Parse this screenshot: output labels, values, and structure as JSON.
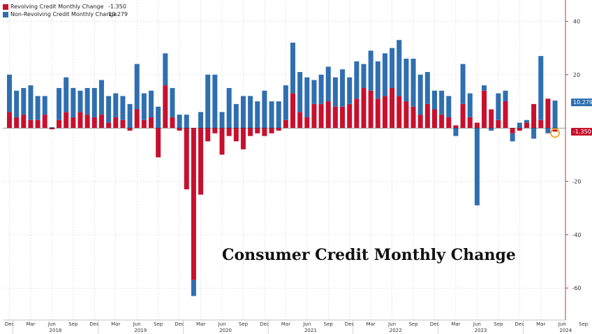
{
  "colors": {
    "revolving": "#c8102e",
    "non_revolving": "#2f6fb0",
    "grid": "#d4d4d4",
    "axis_red": "#c23b3b",
    "marker": "#f0a830"
  },
  "legend": [
    {
      "name": "Revolving Credit Monthly Change",
      "value": "-1.350",
      "color": "#c8102e"
    },
    {
      "name": "Non-Revolving Credit Monthly Change",
      "value": "10.279",
      "color": "#2f6fb0"
    }
  ],
  "callouts": {
    "non_revolving": "10.279",
    "revolving": "-1.350"
  },
  "chart_data": {
    "type": "bar",
    "stacked": true,
    "title": "Consumer Credit Monthly Change",
    "ylim": [
      -72,
      48
    ],
    "yticks": [
      -60,
      -40,
      -20,
      20,
      40
    ],
    "grid": true,
    "legend_position": "top-left",
    "month_ticks": [
      "Dec",
      "Mar",
      "Jun",
      "Sep",
      "Dec",
      "Mar",
      "Jun",
      "Sep",
      "Dec",
      "Mar",
      "Jun",
      "Sep",
      "Dec",
      "Mar",
      "Jun",
      "Sep",
      "Dec",
      "Mar",
      "Jun",
      "Sep",
      "Dec",
      "Mar",
      "Jun",
      "Sep",
      "Dec",
      "Mar",
      "Jun",
      "Sep"
    ],
    "year_labels": [
      "2018",
      "2019",
      "2020",
      "2021",
      "2022",
      "2023",
      "2024"
    ],
    "series": [
      {
        "name": "Revolving Credit Monthly Change",
        "values": [
          6,
          4,
          5,
          3,
          3,
          5,
          -0.5,
          3,
          6,
          4,
          6,
          5,
          4,
          5,
          2,
          4,
          3,
          -1,
          7,
          3,
          4,
          -11,
          16,
          4,
          -1,
          -23,
          -57,
          -25,
          -5,
          -2,
          -10,
          -3,
          -5,
          -8,
          -3,
          -2,
          -3,
          -2,
          -1,
          3,
          13,
          6,
          4,
          9,
          9,
          10,
          8,
          8,
          9,
          11,
          15,
          14,
          11,
          12,
          15,
          12,
          10,
          8,
          5,
          9,
          7,
          5,
          4,
          1,
          9,
          4,
          2,
          14,
          7,
          3,
          10,
          -2,
          -1,
          2,
          9,
          3,
          11,
          -1.35
        ]
      },
      {
        "name": "Non-Revolving Credit Monthly Change",
        "values": [
          14,
          10,
          10,
          13,
          9,
          7,
          0.3,
          12,
          13,
          11,
          8,
          10,
          11,
          13,
          10,
          9,
          9,
          9,
          17,
          10,
          10,
          8,
          12,
          11,
          5,
          5,
          -6,
          6,
          20,
          20,
          6,
          15,
          9,
          12,
          12,
          10,
          14,
          10,
          10,
          13,
          19,
          15,
          15,
          9,
          11,
          13,
          11,
          14,
          10,
          14,
          9,
          15,
          14,
          16,
          15,
          21,
          16,
          18,
          15,
          12,
          7,
          9,
          8,
          -3,
          15,
          9,
          -29,
          2,
          -1,
          10,
          4,
          -3,
          2,
          1,
          -4,
          24,
          -2,
          10.28
        ]
      }
    ]
  }
}
